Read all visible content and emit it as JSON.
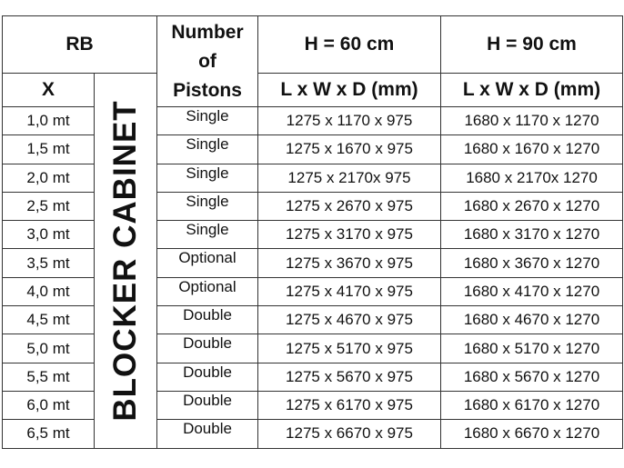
{
  "header": {
    "rb": "RB",
    "x": "X",
    "pistons": "Number of Pistons",
    "pistons_lines": [
      "Number",
      "of",
      "Pistons"
    ],
    "h60": "H = 60 cm",
    "h90": "H = 90 cm",
    "dims60": "L x W x D (mm)",
    "dims90": "L x W x D (mm)"
  },
  "vertical_label": "BLOCKER CABINET",
  "rows": [
    {
      "x": "1,0 mt",
      "pistons": "Single",
      "h60": "1275 x 1170 x 975",
      "h90": "1680 x 1170 x 1270"
    },
    {
      "x": "1,5 mt",
      "pistons": "Single",
      "h60": "1275 x 1670 x 975",
      "h90": "1680 x 1670 x 1270"
    },
    {
      "x": "2,0 mt",
      "pistons": "Single",
      "h60": "1275 x 2170x 975",
      "h90": "1680 x 2170x 1270"
    },
    {
      "x": "2,5 mt",
      "pistons": "Single",
      "h60": "1275 x 2670 x 975",
      "h90": "1680 x 2670 x 1270"
    },
    {
      "x": "3,0 mt",
      "pistons": "Single",
      "h60": "1275 x 3170 x 975",
      "h90": "1680 x 3170 x 1270"
    },
    {
      "x": "3,5 mt",
      "pistons": "Optional",
      "h60": "1275 x 3670 x 975",
      "h90": "1680 x 3670 x 1270"
    },
    {
      "x": "4,0 mt",
      "pistons": "Optional",
      "h60": "1275 x 4170 x 975",
      "h90": "1680 x 4170 x 1270"
    },
    {
      "x": "4,5 mt",
      "pistons": "Double",
      "h60": "1275 x 4670 x 975",
      "h90": "1680 x 4670 x 1270"
    },
    {
      "x": "5,0 mt",
      "pistons": "Double",
      "h60": "1275 x 5170 x 975",
      "h90": "1680 x 5170 x 1270"
    },
    {
      "x": "5,5 mt",
      "pistons": "Double",
      "h60": "1275 x 5670 x 975",
      "h90": "1680 x 5670 x 1270"
    },
    {
      "x": "6,0 mt",
      "pistons": "Double",
      "h60": "1275 x 6170 x 975",
      "h90": "1680 x 6170 x 1270"
    },
    {
      "x": "6,5 mt",
      "pistons": "Double",
      "h60": "1275 x 6670 x 975",
      "h90": "1680 x 6670 x 1270"
    }
  ]
}
